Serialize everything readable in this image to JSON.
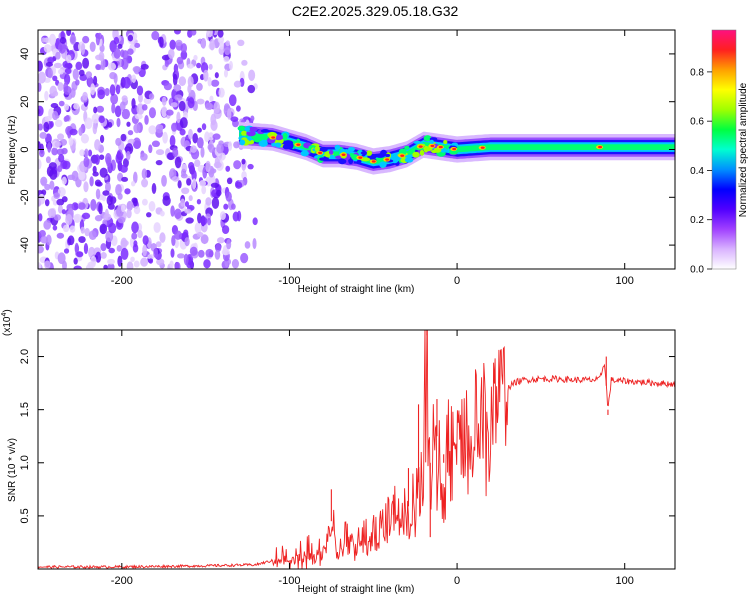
{
  "title": "C2E2.2025.329.05.18.G32",
  "chart_data": [
    {
      "type": "heatmap",
      "title": "C2E2.2025.329.05.18.G32",
      "xlabel": "Height of straight line (km)",
      "ylabel": "Frequency (Hz)",
      "xlim": [
        -250,
        130
      ],
      "ylim": [
        -50,
        50
      ],
      "x_ticks": [
        -200,
        -100,
        0,
        100
      ],
      "y_ticks": [
        -40,
        -20,
        0,
        20,
        40
      ],
      "colorbar": {
        "label": "Normalized spectral amplitude",
        "range": [
          0,
          0.97
        ],
        "ticks": [
          "0.0",
          "0.2",
          "0.4",
          "0.6",
          "0.8"
        ],
        "colors": [
          "#ffffff",
          "#d9b3ff",
          "#a040ff",
          "#5000ff",
          "#0000ff",
          "#0090ff",
          "#00ffd0",
          "#00ff40",
          "#a0ff00",
          "#ffff00",
          "#ffa000",
          "#ff2020",
          "#ff1080"
        ]
      },
      "noise_region": {
        "x": [
          -250,
          -120
        ],
        "y": [
          -50,
          50
        ]
      },
      "signal_ridge": {
        "x": [
          -130,
          -110,
          -100,
          -90,
          -80,
          -70,
          -60,
          -50,
          -40,
          -30,
          -20,
          -10,
          0,
          20,
          50,
          80,
          90,
          110,
          130
        ],
        "y": [
          6,
          5,
          3,
          1,
          -2,
          -2,
          -3,
          -5,
          -4,
          -2,
          2,
          1,
          0,
          1,
          1,
          1,
          1,
          1,
          1
        ]
      }
    },
    {
      "type": "line",
      "xlabel": "Height of straight line (km)",
      "ylabel": "SNR (10 * v/v)",
      "y_multiplier": "(x10",
      "y_exponent": "4",
      "y_multiplier_close": ")",
      "xlim": [
        -250,
        130
      ],
      "ylim": [
        0,
        2.25
      ],
      "x_ticks": [
        -200,
        -100,
        0,
        100
      ],
      "y_ticks": [
        0.5,
        1.0,
        1.5,
        2.0
      ],
      "y_tick_labels": [
        "0.5",
        "1.0",
        "1.5",
        "2.0"
      ],
      "color": "#ee2222",
      "series": [
        {
          "name": "SNR",
          "x": [
            -250,
            -200,
            -150,
            -120,
            -110,
            -100,
            -90,
            -80,
            -75,
            -70,
            -65,
            -60,
            -55,
            -50,
            -45,
            -40,
            -35,
            -30,
            -25,
            -22,
            -20,
            -18,
            -16,
            -14,
            -10,
            -5,
            0,
            5,
            10,
            15,
            20,
            25,
            30,
            35,
            40,
            50,
            60,
            70,
            80,
            85,
            88,
            90,
            92,
            95,
            100,
            110,
            120,
            130
          ],
          "y": [
            0.02,
            0.02,
            0.03,
            0.04,
            0.08,
            0.12,
            0.15,
            0.2,
            0.45,
            0.2,
            0.3,
            0.25,
            0.35,
            0.3,
            0.5,
            0.45,
            0.6,
            0.55,
            0.75,
            0.85,
            1.4,
            2.2,
            1.0,
            1.5,
            1.0,
            1.2,
            1.25,
            1.3,
            1.4,
            1.5,
            1.6,
            1.65,
            1.7,
            1.76,
            1.78,
            1.79,
            1.79,
            1.78,
            1.78,
            1.78,
            1.95,
            1.5,
            1.78,
            1.77,
            1.77,
            1.76,
            1.75,
            1.74
          ]
        }
      ],
      "spikes": [
        {
          "x": -75,
          "y": 0.75
        },
        {
          "x": -38,
          "y": 0.7
        },
        {
          "x": -29,
          "y": 0.95
        },
        {
          "x": -23,
          "y": 1.55
        },
        {
          "x": -18,
          "y": 2.25
        },
        {
          "x": -16,
          "y": 0.3
        },
        {
          "x": -12,
          "y": 1.6
        },
        {
          "x": -8,
          "y": 1.0
        },
        {
          "x": 89,
          "y": 2.0
        },
        {
          "x": 90,
          "y": 1.45
        }
      ]
    }
  ]
}
